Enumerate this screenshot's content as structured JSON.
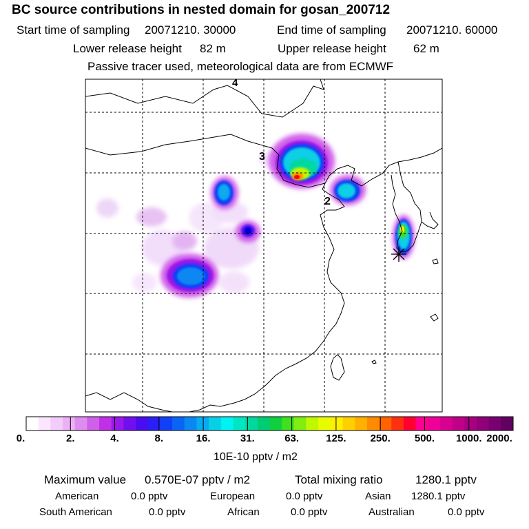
{
  "title": "BC  source contributions in nested domain for gosan_200712",
  "header": {
    "start_label": "Start time of sampling",
    "start_value": "20071210. 30000",
    "end_label": "End time of sampling",
    "end_value": "20071210. 60000",
    "lower_label": "Lower release height",
    "lower_value": "82 m",
    "upper_label": "Upper release height",
    "upper_value": "62 m",
    "note": "Passive tracer used, meteorological data are from ECMWF"
  },
  "map": {
    "labels": [
      "4",
      "3",
      "2"
    ],
    "colors": {
      "land": "#ffffff",
      "coast": "#000000",
      "grid": "#000000"
    },
    "plumes": [
      {
        "name": "plume-beijing",
        "peak": "#ff0000"
      },
      {
        "name": "plume-shenyang",
        "peak": "#0044ff"
      },
      {
        "name": "plume-korea",
        "peak": "#ffff00"
      },
      {
        "name": "plume-inner",
        "peak": "#0000cc"
      },
      {
        "name": "plume-sichuan",
        "peak": "#0066ff"
      }
    ]
  },
  "colorbar": {
    "ticks": [
      "0.",
      "2.",
      "4.",
      "8.",
      "16.",
      "31.",
      "63.",
      "125.",
      "250.",
      "500.",
      "1000.",
      "2000."
    ],
    "colors": [
      "#ffffff",
      "#fbe6ff",
      "#f4ccfb",
      "#eab2f5",
      "#de8cef",
      "#d060ea",
      "#c030e6",
      "#9a18ea",
      "#7010ee",
      "#4a0cf0",
      "#2a20f6",
      "#1040f8",
      "#0a64f6",
      "#0a88f2",
      "#08aaf0",
      "#08cfe6",
      "#00f2f2",
      "#00e6c4",
      "#00d8a0",
      "#00cc74",
      "#10d040",
      "#40e020",
      "#80ee10",
      "#c0f800",
      "#e8fc00",
      "#fff000",
      "#ffd000",
      "#ffb000",
      "#ff8c00",
      "#ff6400",
      "#ff3010",
      "#ff0030",
      "#ff0090",
      "#f00098",
      "#d80090",
      "#c00088",
      "#a80080",
      "#900078",
      "#780070",
      "#600060"
    ],
    "units": "10E-10 pptv / m2"
  },
  "stats": {
    "max_label": "Maximum value",
    "max_value": "0.570E-07 pptv / m2",
    "total_label": "Total mixing ratio",
    "total_value": "1280.1 pptv",
    "american_label": "American",
    "american_value": "0.0 pptv",
    "european_label": "European",
    "european_value": "0.0 pptv",
    "asian_label": "Asian",
    "asian_value": "1280.1 pptv",
    "south_american_label": "South American",
    "south_american_value": "0.0 pptv",
    "african_label": "African",
    "african_value": "0.0 pptv",
    "australian_label": "Australian",
    "australian_value": "0.0 pptv"
  }
}
